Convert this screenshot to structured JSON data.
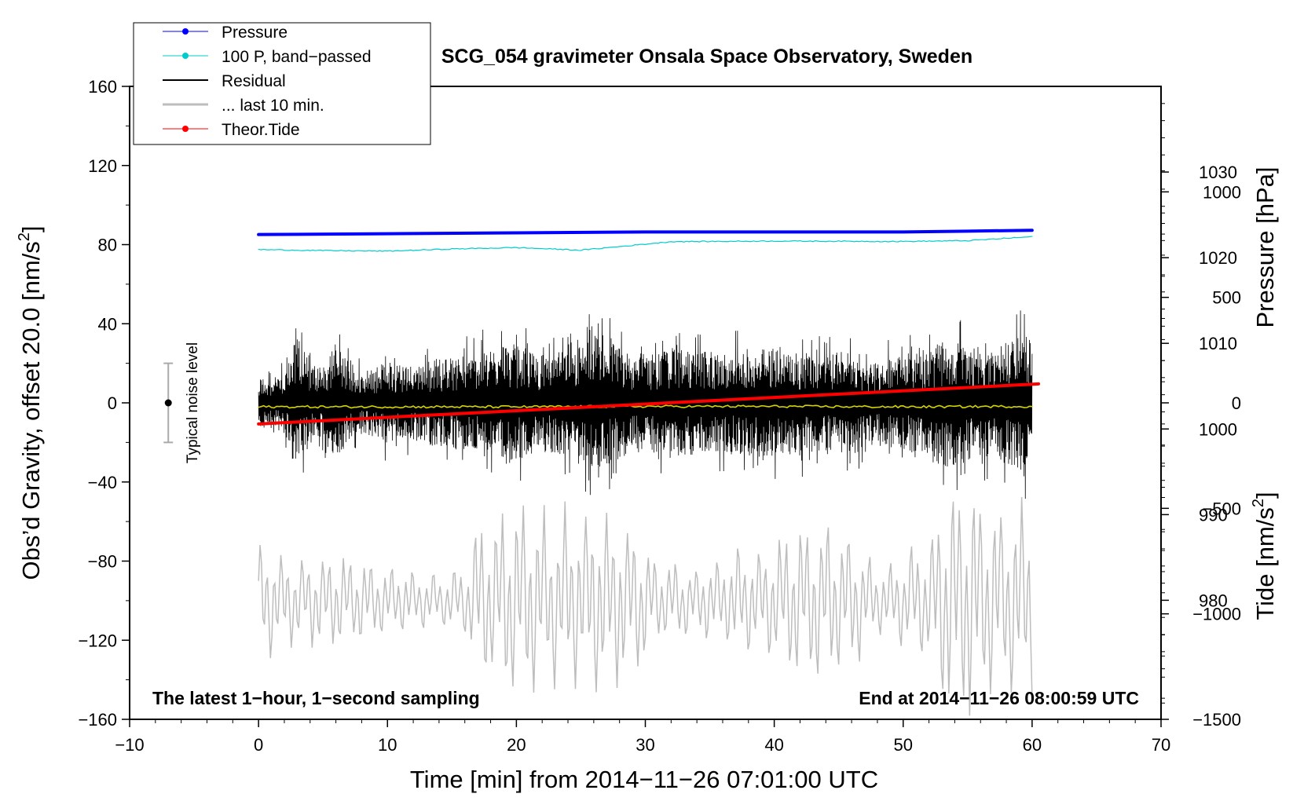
{
  "chart_data": {
    "type": "line",
    "title": "SCG_054 gravimeter Onsala Space Observatory, Sweden",
    "xlabel": "Time [min] from 2014−11−26 07:01:00 UTC",
    "ylabel": "Obs’d Gravity, offset 20.0 [nm/s",
    "ylabel_sup": "2",
    "ylabel_end": "]",
    "pressure_axis_label": "Pressure [hPa]",
    "tide_axis_label": "Tide [nm/s",
    "tide_axis_sup": "2",
    "tide_axis_end": "]",
    "xlim": [
      -10,
      70
    ],
    "ylim": [
      -160,
      160
    ],
    "pressure_lim": [
      966.1,
      1040.0
    ],
    "tide_lim": [
      -1500,
      1500
    ],
    "x_ticks": [
      {
        "v": -10,
        "label": "−10"
      },
      {
        "v": 0,
        "label": "0"
      },
      {
        "v": 10,
        "label": "10"
      },
      {
        "v": 20,
        "label": "20"
      },
      {
        "v": 30,
        "label": "30"
      },
      {
        "v": 40,
        "label": "40"
      },
      {
        "v": 50,
        "label": "50"
      },
      {
        "v": 60,
        "label": "60"
      },
      {
        "v": 70,
        "label": "70"
      }
    ],
    "y_ticks": [
      {
        "v": 160,
        "label": "160"
      },
      {
        "v": 120,
        "label": "120"
      },
      {
        "v": 80,
        "label": "80"
      },
      {
        "v": 40,
        "label": "40"
      },
      {
        "v": 0,
        "label": "0"
      },
      {
        "v": -40,
        "label": "−40"
      },
      {
        "v": -80,
        "label": "−80"
      },
      {
        "v": -120,
        "label": "−120"
      },
      {
        "v": -160,
        "label": "−160"
      }
    ],
    "pressure_ticks": [
      {
        "v": 1030,
        "label": "1030"
      },
      {
        "v": 1020,
        "label": "1020"
      },
      {
        "v": 1010,
        "label": "1010"
      },
      {
        "v": 1000,
        "label": "1000"
      },
      {
        "v": 990,
        "label": "990"
      },
      {
        "v": 980,
        "label": "980"
      }
    ],
    "tide_ticks": [
      {
        "v": 1000,
        "label": "1000"
      },
      {
        "v": 500,
        "label": "500"
      },
      {
        "v": 0,
        "label": "0"
      },
      {
        "v": -500,
        "label": "−500"
      },
      {
        "v": -1000,
        "label": "−1000"
      },
      {
        "v": -1500,
        "label": "−1500"
      }
    ],
    "legend": [
      {
        "label": "Pressure",
        "color": "#0000ff",
        "marker": true,
        "style": "thin"
      },
      {
        "label": "100 P, band−passed",
        "color": "#00cccc",
        "marker": true,
        "style": "thin"
      },
      {
        "label": "Residual",
        "color": "#000000",
        "marker": false,
        "style": "medium"
      },
      {
        "label": "... last 10 min.",
        "color": "#bdbdbd",
        "marker": false,
        "style": "thick"
      },
      {
        "label": "Theor.Tide",
        "color": "#ff0000",
        "marker": true,
        "style": "thin"
      }
    ],
    "annotations": {
      "bottom_left": "The latest 1−hour, 1−second sampling",
      "bottom_right": "End at 2014−11−26 08:00:59 UTC",
      "noise_label": "Typical noise level"
    },
    "noise_bar": {
      "x": -7,
      "center": 0,
      "low": -20,
      "high": 20
    },
    "series": [
      {
        "name": "Pressure",
        "axis": "pressure",
        "color": "#0000ff",
        "width": 4,
        "x": [
          0,
          10,
          20,
          30,
          40,
          50,
          55,
          60
        ],
        "values": [
          1022.7,
          1022.8,
          1022.9,
          1023.0,
          1023.0,
          1023.0,
          1023.1,
          1023.2
        ]
      },
      {
        "name": "100 P, band−passed",
        "axis": "left",
        "color": "#00cccc",
        "width": 1.2,
        "x": [
          0,
          5,
          10,
          15,
          20,
          25,
          28,
          32,
          40,
          50,
          55,
          60
        ],
        "values": [
          77.5,
          77.0,
          76.7,
          77.8,
          78.5,
          77.2,
          79.0,
          81.5,
          81.8,
          81.6,
          82.0,
          84.0
        ]
      },
      {
        "name": "Residual",
        "axis": "left",
        "color": "#000000",
        "width": 0.8,
        "x_range": [
          0,
          60
        ],
        "envelope_x": [
          0,
          1,
          2,
          3,
          4,
          5,
          6,
          7,
          8,
          10,
          12,
          14,
          16,
          18,
          19,
          22,
          24,
          26.5,
          28,
          30,
          32,
          34,
          36,
          38,
          40,
          42,
          44,
          46,
          48,
          50,
          52,
          53.5,
          55,
          57,
          58.5,
          59.5,
          60
        ],
        "envelope_amp": [
          20,
          15,
          22,
          52,
          30,
          25,
          45,
          28,
          22,
          30,
          28,
          32,
          35,
          38,
          45,
          35,
          38,
          52,
          40,
          35,
          40,
          38,
          35,
          38,
          40,
          38,
          35,
          38,
          30,
          35,
          38,
          48,
          42,
          38,
          48,
          52,
          40
        ]
      },
      {
        "name": "Smoothed residual",
        "axis": "left",
        "color": "#d4d400",
        "width": 1.6,
        "x": [
          0,
          10,
          20,
          30,
          40,
          50,
          60
        ],
        "values": [
          -2,
          -2,
          -2,
          -1.8,
          -1.8,
          -2,
          -1.8
        ]
      },
      {
        "name": "... last 10 min.",
        "axis": "left",
        "color": "#bdbdbd",
        "width": 1.5,
        "x_range": [
          0,
          60
        ],
        "offset": -100,
        "envelope_x": [
          0,
          3,
          6,
          10,
          14,
          16,
          17,
          20,
          23,
          26,
          29,
          31,
          34,
          37,
          40,
          42,
          44,
          46,
          48,
          50,
          52,
          53,
          55,
          57,
          60
        ],
        "envelope_amp": [
          35,
          25,
          28,
          20,
          15,
          20,
          45,
          60,
          50,
          55,
          45,
          25,
          20,
          30,
          35,
          50,
          48,
          40,
          20,
          25,
          40,
          65,
          70,
          60,
          55
        ]
      },
      {
        "name": "Theor.Tide",
        "axis": "tide",
        "color": "#ff0000",
        "width": 4,
        "x": [
          0,
          60.5
        ],
        "values": [
          -100,
          90
        ]
      }
    ]
  }
}
